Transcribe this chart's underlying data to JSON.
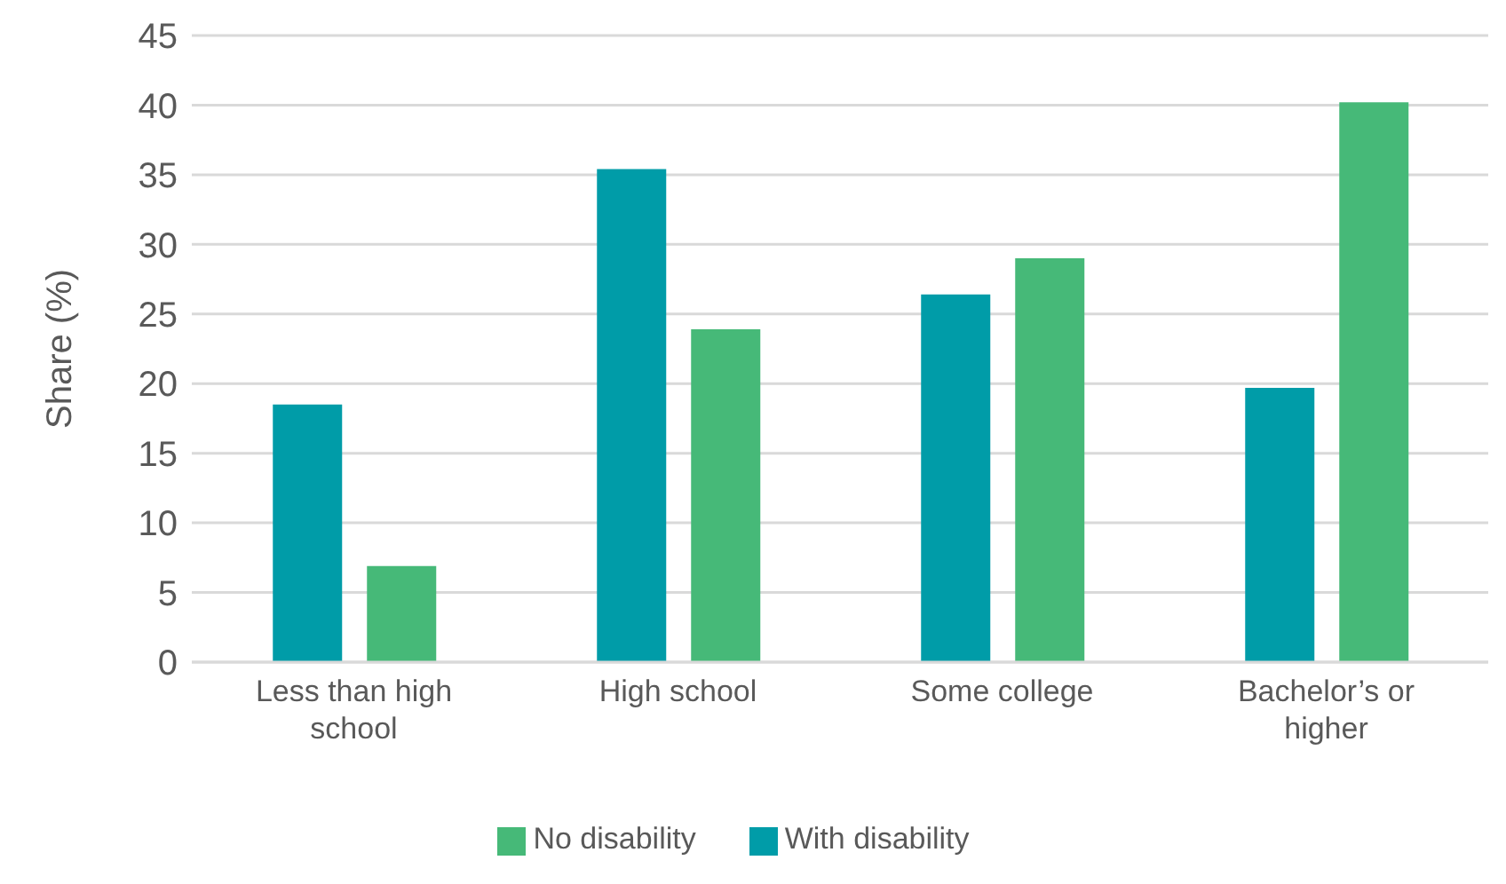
{
  "chart_data": {
    "type": "bar",
    "ylabel": "Share (%)",
    "categories": [
      "Less than high school",
      "High school",
      "Some college",
      "Bachelor’s or higher"
    ],
    "series": [
      {
        "name": "With disability",
        "color": "#009ca8",
        "values": [
          18.5,
          35.4,
          26.4,
          19.7
        ]
      },
      {
        "name": "No disability",
        "color": "#46b978",
        "values": [
          6.9,
          23.9,
          29.0,
          40.2
        ]
      }
    ],
    "ylim": [
      0,
      45
    ],
    "yticks": [
      0,
      5,
      10,
      15,
      20,
      25,
      30,
      35,
      40,
      45
    ],
    "grid": "y",
    "legend": "bottom"
  }
}
